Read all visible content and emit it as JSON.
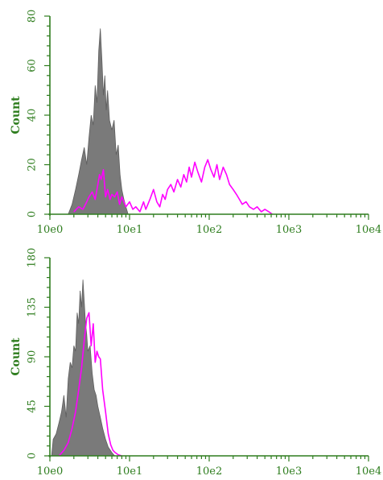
{
  "colors": {
    "axis": "#2e7d1e",
    "isotype_fill": "#7a7a7a",
    "isotype_stroke": "#5e5e5e",
    "sample_line": "#ff00ff"
  },
  "chart_data": [
    {
      "type": "area",
      "xscale": "log",
      "xlim": [
        1,
        10000
      ],
      "ylim": [
        0,
        80
      ],
      "xticks": [
        "10e0",
        "10e1",
        "10e2",
        "10e3",
        "10e4"
      ],
      "yticks": [
        0,
        20,
        40,
        60,
        80
      ],
      "ylabel": "Count",
      "series": [
        {
          "style": "filled",
          "x": [
            1.7,
            1.9,
            2.1,
            2.3,
            2.5,
            2.7,
            2.9,
            3.1,
            3.3,
            3.5,
            3.7,
            3.9,
            4.1,
            4.3,
            4.5,
            4.7,
            4.9,
            5.1,
            5.3,
            5.6,
            6.0,
            6.4,
            6.8,
            7.2,
            7.6,
            8.0,
            8.5,
            9.0,
            9.6
          ],
          "values": [
            0,
            4,
            10,
            16,
            22,
            27,
            20,
            31,
            40,
            36,
            52,
            45,
            66,
            75,
            62,
            48,
            56,
            42,
            50,
            38,
            34,
            38,
            24,
            28,
            16,
            10,
            6,
            3,
            0
          ]
        },
        {
          "style": "line",
          "x": [
            2.0,
            2.3,
            2.6,
            2.9,
            3.1,
            3.4,
            3.7,
            4.0,
            4.2,
            4.4,
            4.7,
            5.0,
            5.3,
            5.7,
            6.0,
            6.5,
            7.0,
            7.5,
            8.0,
            9.0,
            10,
            11,
            12,
            13.5,
            15,
            16,
            17,
            18,
            20,
            22,
            24,
            26,
            28,
            30,
            33,
            36,
            40,
            44,
            48,
            52,
            56,
            60,
            66,
            72,
            80,
            88,
            96,
            105,
            115,
            125,
            135,
            150,
            165,
            180,
            200,
            220,
            240,
            260,
            290,
            320,
            360,
            400,
            450,
            500,
            560,
            620
          ],
          "values": [
            1,
            3,
            2,
            5,
            7,
            9,
            6,
            12,
            16,
            14,
            18,
            7,
            10,
            6,
            8,
            7,
            9,
            4,
            7,
            3,
            5,
            2,
            3,
            1,
            5,
            2,
            4,
            6,
            10,
            5,
            3,
            8,
            6,
            10,
            12,
            9,
            14,
            11,
            16,
            13,
            19,
            15,
            21,
            17,
            13,
            19,
            22,
            18,
            15,
            20,
            14,
            19,
            16,
            12,
            10,
            8,
            6,
            4,
            5,
            3,
            2,
            3,
            1,
            2,
            1,
            0
          ]
        }
      ]
    },
    {
      "type": "area",
      "xscale": "log",
      "xlim": [
        1,
        10000
      ],
      "ylim": [
        0,
        180
      ],
      "xticks": [
        "10e0",
        "10e1",
        "10e2",
        "10e3",
        "10e4"
      ],
      "yticks": [
        0,
        45,
        90,
        135,
        180
      ],
      "ylabel": "Count",
      "series": [
        {
          "style": "filled",
          "x": [
            1.05,
            1.1,
            1.2,
            1.3,
            1.4,
            1.5,
            1.6,
            1.7,
            1.8,
            1.9,
            2.0,
            2.1,
            2.2,
            2.3,
            2.4,
            2.5,
            2.6,
            2.7,
            2.8,
            2.9,
            3.0,
            3.2,
            3.4,
            3.6,
            3.8,
            4.0,
            4.3,
            4.6,
            5.0,
            5.4,
            6.0,
            6.5
          ],
          "values": [
            0,
            15,
            20,
            30,
            40,
            55,
            35,
            70,
            85,
            80,
            100,
            95,
            130,
            120,
            150,
            135,
            160,
            140,
            120,
            110,
            95,
            100,
            75,
            60,
            55,
            45,
            35,
            25,
            15,
            8,
            3,
            0
          ]
        },
        {
          "style": "line",
          "x": [
            1.3,
            1.5,
            1.7,
            1.9,
            2.1,
            2.3,
            2.5,
            2.7,
            2.9,
            3.1,
            3.3,
            3.5,
            3.7,
            3.9,
            4.1,
            4.3,
            4.6,
            5.0,
            5.4,
            5.8,
            6.2,
            6.6,
            7.2,
            8.0
          ],
          "values": [
            0,
            5,
            12,
            25,
            40,
            60,
            80,
            105,
            125,
            130,
            100,
            120,
            85,
            95,
            90,
            88,
            60,
            40,
            20,
            10,
            5,
            3,
            1,
            0
          ]
        }
      ]
    }
  ]
}
